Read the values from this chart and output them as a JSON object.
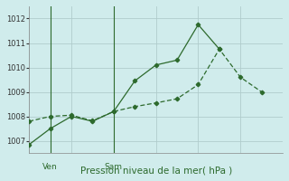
{
  "line_color": "#2d6a2d",
  "bg_color": "#d0ecec",
  "grid_color": "#b0cccc",
  "xlabel": "Pression niveau de la mer( hPa )",
  "ven_label": "Ven",
  "sam_label": "Sam",
  "ylim_min": 1006.5,
  "ylim_max": 1012.5,
  "yticks": [
    1007,
    1008,
    1009,
    1010,
    1011,
    1012
  ],
  "ven_line_x": 1,
  "sam_line_x": 4,
  "xlim_min": 0,
  "xlim_max": 12,
  "line1_x": [
    0,
    1,
    2,
    3,
    4,
    5,
    6,
    7,
    8,
    9
  ],
  "line1_y": [
    1006.85,
    1007.5,
    1008.0,
    1007.8,
    1008.2,
    1009.45,
    1010.1,
    1010.3,
    1011.75,
    1010.75
  ],
  "line2_x": [
    0,
    1,
    2,
    3,
    4,
    5,
    6,
    7,
    8,
    9,
    10,
    11
  ],
  "line2_y": [
    1007.8,
    1008.0,
    1008.05,
    1007.82,
    1008.2,
    1008.4,
    1008.55,
    1008.72,
    1009.3,
    1010.75,
    1009.6,
    1009.0
  ],
  "xlabel_fontsize": 7.5,
  "tick_fontsize": 6,
  "day_fontsize": 6.5
}
